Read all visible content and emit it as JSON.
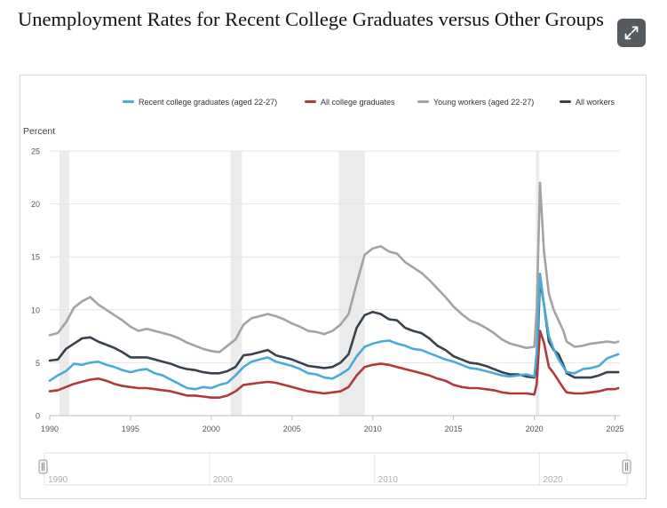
{
  "page": {
    "title": "Unemployment Rates for Recent College Graduates versus Other Groups"
  },
  "chart_data": {
    "type": "line",
    "title": "",
    "xlabel": "",
    "ylabel": "Percent",
    "xlim": [
      1990,
      2025.3
    ],
    "ylim": [
      0,
      25
    ],
    "y_ticks": [
      0,
      5,
      10,
      15,
      20,
      25
    ],
    "x_ticks": [
      1990,
      1995,
      2000,
      2005,
      2010,
      2015,
      2020,
      2025
    ],
    "legend_position": "top",
    "grid": "horizontal",
    "recessions": [
      [
        1990.6,
        1991.2
      ],
      [
        2001.2,
        2001.9
      ],
      [
        2007.9,
        2009.5
      ],
      [
        2020.1,
        2020.3
      ]
    ],
    "series": [
      {
        "name": "Recent college graduates (aged 22-27)",
        "color": "#4aaad8",
        "points": [
          [
            1990.0,
            3.3
          ],
          [
            1990.5,
            3.8
          ],
          [
            1991.0,
            4.2
          ],
          [
            1991.5,
            4.9
          ],
          [
            1992.0,
            4.8
          ],
          [
            1992.5,
            5.0
          ],
          [
            1993.0,
            5.1
          ],
          [
            1993.5,
            4.8
          ],
          [
            1994.0,
            4.6
          ],
          [
            1994.5,
            4.3
          ],
          [
            1995.0,
            4.1
          ],
          [
            1995.5,
            4.3
          ],
          [
            1996.0,
            4.4
          ],
          [
            1996.5,
            4.0
          ],
          [
            1997.0,
            3.8
          ],
          [
            1997.5,
            3.4
          ],
          [
            1998.0,
            3.0
          ],
          [
            1998.5,
            2.6
          ],
          [
            1999.0,
            2.5
          ],
          [
            1999.5,
            2.7
          ],
          [
            2000.0,
            2.6
          ],
          [
            2000.5,
            2.9
          ],
          [
            2001.0,
            3.1
          ],
          [
            2001.5,
            3.8
          ],
          [
            2002.0,
            4.6
          ],
          [
            2002.5,
            5.1
          ],
          [
            2003.0,
            5.3
          ],
          [
            2003.5,
            5.5
          ],
          [
            2004.0,
            5.1
          ],
          [
            2004.5,
            4.9
          ],
          [
            2005.0,
            4.7
          ],
          [
            2005.5,
            4.4
          ],
          [
            2006.0,
            4.0
          ],
          [
            2006.5,
            3.9
          ],
          [
            2007.0,
            3.6
          ],
          [
            2007.5,
            3.5
          ],
          [
            2008.0,
            3.9
          ],
          [
            2008.5,
            4.4
          ],
          [
            2009.0,
            5.6
          ],
          [
            2009.5,
            6.5
          ],
          [
            2010.0,
            6.8
          ],
          [
            2010.5,
            7.0
          ],
          [
            2011.0,
            7.1
          ],
          [
            2011.5,
            6.8
          ],
          [
            2012.0,
            6.6
          ],
          [
            2012.5,
            6.3
          ],
          [
            2013.0,
            6.2
          ],
          [
            2013.5,
            5.9
          ],
          [
            2014.0,
            5.6
          ],
          [
            2014.5,
            5.3
          ],
          [
            2015.0,
            5.1
          ],
          [
            2015.5,
            4.8
          ],
          [
            2016.0,
            4.5
          ],
          [
            2016.5,
            4.4
          ],
          [
            2017.0,
            4.2
          ],
          [
            2017.5,
            4.0
          ],
          [
            2018.0,
            3.8
          ],
          [
            2018.5,
            3.7
          ],
          [
            2019.0,
            3.8
          ],
          [
            2019.5,
            3.9
          ],
          [
            2020.0,
            3.7
          ],
          [
            2020.15,
            6.0
          ],
          [
            2020.35,
            13.4
          ],
          [
            2020.6,
            10.5
          ],
          [
            2020.9,
            7.5
          ],
          [
            2021.2,
            6.3
          ],
          [
            2021.5,
            5.3
          ],
          [
            2021.8,
            4.6
          ],
          [
            2022.0,
            4.1
          ],
          [
            2022.5,
            4.0
          ],
          [
            2023.0,
            4.4
          ],
          [
            2023.5,
            4.5
          ],
          [
            2024.0,
            4.7
          ],
          [
            2024.5,
            5.4
          ],
          [
            2025.0,
            5.7
          ],
          [
            2025.2,
            5.8
          ]
        ]
      },
      {
        "name": "All college graduates",
        "color": "#b03a3a",
        "points": [
          [
            1990.0,
            2.3
          ],
          [
            1990.5,
            2.4
          ],
          [
            1991.0,
            2.7
          ],
          [
            1991.5,
            3.0
          ],
          [
            1992.0,
            3.2
          ],
          [
            1992.5,
            3.4
          ],
          [
            1993.0,
            3.5
          ],
          [
            1993.5,
            3.3
          ],
          [
            1994.0,
            3.0
          ],
          [
            1994.5,
            2.8
          ],
          [
            1995.0,
            2.7
          ],
          [
            1995.5,
            2.6
          ],
          [
            1996.0,
            2.6
          ],
          [
            1996.5,
            2.5
          ],
          [
            1997.0,
            2.4
          ],
          [
            1997.5,
            2.3
          ],
          [
            1998.0,
            2.1
          ],
          [
            1998.5,
            1.9
          ],
          [
            1999.0,
            1.9
          ],
          [
            1999.5,
            1.8
          ],
          [
            2000.0,
            1.7
          ],
          [
            2000.5,
            1.7
          ],
          [
            2001.0,
            1.9
          ],
          [
            2001.5,
            2.3
          ],
          [
            2002.0,
            2.9
          ],
          [
            2002.5,
            3.0
          ],
          [
            2003.0,
            3.1
          ],
          [
            2003.5,
            3.2
          ],
          [
            2004.0,
            3.1
          ],
          [
            2004.5,
            2.9
          ],
          [
            2005.0,
            2.7
          ],
          [
            2005.5,
            2.5
          ],
          [
            2006.0,
            2.3
          ],
          [
            2006.5,
            2.2
          ],
          [
            2007.0,
            2.1
          ],
          [
            2007.5,
            2.2
          ],
          [
            2008.0,
            2.3
          ],
          [
            2008.5,
            2.7
          ],
          [
            2009.0,
            3.8
          ],
          [
            2009.5,
            4.6
          ],
          [
            2010.0,
            4.8
          ],
          [
            2010.5,
            4.9
          ],
          [
            2011.0,
            4.8
          ],
          [
            2011.5,
            4.6
          ],
          [
            2012.0,
            4.4
          ],
          [
            2012.5,
            4.2
          ],
          [
            2013.0,
            4.0
          ],
          [
            2013.5,
            3.8
          ],
          [
            2014.0,
            3.5
          ],
          [
            2014.5,
            3.3
          ],
          [
            2015.0,
            2.9
          ],
          [
            2015.5,
            2.7
          ],
          [
            2016.0,
            2.6
          ],
          [
            2016.5,
            2.6
          ],
          [
            2017.0,
            2.5
          ],
          [
            2017.5,
            2.4
          ],
          [
            2018.0,
            2.2
          ],
          [
            2018.5,
            2.1
          ],
          [
            2019.0,
            2.1
          ],
          [
            2019.5,
            2.1
          ],
          [
            2020.0,
            2.0
          ],
          [
            2020.15,
            3.0
          ],
          [
            2020.35,
            8.0
          ],
          [
            2020.6,
            6.9
          ],
          [
            2020.9,
            4.6
          ],
          [
            2021.2,
            4.0
          ],
          [
            2021.5,
            3.3
          ],
          [
            2021.8,
            2.6
          ],
          [
            2022.0,
            2.2
          ],
          [
            2022.5,
            2.1
          ],
          [
            2023.0,
            2.1
          ],
          [
            2023.5,
            2.2
          ],
          [
            2024.0,
            2.3
          ],
          [
            2024.5,
            2.5
          ],
          [
            2025.0,
            2.5
          ],
          [
            2025.2,
            2.6
          ]
        ]
      },
      {
        "name": "Young workers (aged 22-27)",
        "color": "#a3a3a3",
        "points": [
          [
            1990.0,
            7.6
          ],
          [
            1990.5,
            7.8
          ],
          [
            1991.0,
            8.8
          ],
          [
            1991.5,
            10.2
          ],
          [
            1992.0,
            10.8
          ],
          [
            1992.5,
            11.2
          ],
          [
            1993.0,
            10.5
          ],
          [
            1993.5,
            10.0
          ],
          [
            1994.0,
            9.5
          ],
          [
            1994.5,
            9.0
          ],
          [
            1995.0,
            8.4
          ],
          [
            1995.5,
            8.0
          ],
          [
            1996.0,
            8.2
          ],
          [
            1996.5,
            8.0
          ],
          [
            1997.0,
            7.8
          ],
          [
            1997.5,
            7.6
          ],
          [
            1998.0,
            7.3
          ],
          [
            1998.5,
            6.9
          ],
          [
            1999.0,
            6.6
          ],
          [
            1999.5,
            6.3
          ],
          [
            2000.0,
            6.1
          ],
          [
            2000.5,
            6.0
          ],
          [
            2001.0,
            6.6
          ],
          [
            2001.5,
            7.2
          ],
          [
            2002.0,
            8.6
          ],
          [
            2002.5,
            9.2
          ],
          [
            2003.0,
            9.4
          ],
          [
            2003.5,
            9.6
          ],
          [
            2004.0,
            9.4
          ],
          [
            2004.5,
            9.1
          ],
          [
            2005.0,
            8.7
          ],
          [
            2005.5,
            8.4
          ],
          [
            2006.0,
            8.0
          ],
          [
            2006.5,
            7.9
          ],
          [
            2007.0,
            7.7
          ],
          [
            2007.5,
            8.0
          ],
          [
            2008.0,
            8.6
          ],
          [
            2008.5,
            9.6
          ],
          [
            2009.0,
            12.5
          ],
          [
            2009.5,
            15.2
          ],
          [
            2010.0,
            15.8
          ],
          [
            2010.5,
            16.0
          ],
          [
            2011.0,
            15.5
          ],
          [
            2011.5,
            15.3
          ],
          [
            2012.0,
            14.5
          ],
          [
            2012.5,
            14.0
          ],
          [
            2013.0,
            13.5
          ],
          [
            2013.5,
            12.8
          ],
          [
            2014.0,
            12.0
          ],
          [
            2014.5,
            11.2
          ],
          [
            2015.0,
            10.3
          ],
          [
            2015.5,
            9.6
          ],
          [
            2016.0,
            9.0
          ],
          [
            2016.5,
            8.7
          ],
          [
            2017.0,
            8.3
          ],
          [
            2017.5,
            7.8
          ],
          [
            2018.0,
            7.2
          ],
          [
            2018.5,
            6.8
          ],
          [
            2019.0,
            6.6
          ],
          [
            2019.5,
            6.4
          ],
          [
            2020.0,
            6.5
          ],
          [
            2020.15,
            10.0
          ],
          [
            2020.35,
            22.0
          ],
          [
            2020.6,
            15.5
          ],
          [
            2020.9,
            11.5
          ],
          [
            2021.2,
            10.0
          ],
          [
            2021.5,
            9.0
          ],
          [
            2021.8,
            8.0
          ],
          [
            2022.0,
            7.0
          ],
          [
            2022.5,
            6.5
          ],
          [
            2023.0,
            6.6
          ],
          [
            2023.5,
            6.8
          ],
          [
            2024.0,
            6.9
          ],
          [
            2024.5,
            7.0
          ],
          [
            2025.0,
            6.9
          ],
          [
            2025.2,
            7.0
          ]
        ]
      },
      {
        "name": "All workers",
        "color": "#37424d",
        "points": [
          [
            1990.0,
            5.2
          ],
          [
            1990.5,
            5.3
          ],
          [
            1991.0,
            6.3
          ],
          [
            1991.5,
            6.8
          ],
          [
            1992.0,
            7.3
          ],
          [
            1992.5,
            7.4
          ],
          [
            1993.0,
            7.0
          ],
          [
            1993.5,
            6.7
          ],
          [
            1994.0,
            6.4
          ],
          [
            1994.5,
            6.0
          ],
          [
            1995.0,
            5.5
          ],
          [
            1995.5,
            5.5
          ],
          [
            1996.0,
            5.5
          ],
          [
            1996.5,
            5.3
          ],
          [
            1997.0,
            5.1
          ],
          [
            1997.5,
            4.9
          ],
          [
            1998.0,
            4.6
          ],
          [
            1998.5,
            4.4
          ],
          [
            1999.0,
            4.3
          ],
          [
            1999.5,
            4.1
          ],
          [
            2000.0,
            4.0
          ],
          [
            2000.5,
            4.0
          ],
          [
            2001.0,
            4.2
          ],
          [
            2001.5,
            4.6
          ],
          [
            2002.0,
            5.7
          ],
          [
            2002.5,
            5.8
          ],
          [
            2003.0,
            6.0
          ],
          [
            2003.5,
            6.2
          ],
          [
            2004.0,
            5.7
          ],
          [
            2004.5,
            5.5
          ],
          [
            2005.0,
            5.3
          ],
          [
            2005.5,
            5.0
          ],
          [
            2006.0,
            4.7
          ],
          [
            2006.5,
            4.6
          ],
          [
            2007.0,
            4.5
          ],
          [
            2007.5,
            4.6
          ],
          [
            2008.0,
            5.0
          ],
          [
            2008.5,
            5.8
          ],
          [
            2009.0,
            8.3
          ],
          [
            2009.5,
            9.5
          ],
          [
            2010.0,
            9.8
          ],
          [
            2010.5,
            9.6
          ],
          [
            2011.0,
            9.1
          ],
          [
            2011.5,
            9.0
          ],
          [
            2012.0,
            8.3
          ],
          [
            2012.5,
            8.0
          ],
          [
            2013.0,
            7.8
          ],
          [
            2013.5,
            7.3
          ],
          [
            2014.0,
            6.6
          ],
          [
            2014.5,
            6.2
          ],
          [
            2015.0,
            5.6
          ],
          [
            2015.5,
            5.3
          ],
          [
            2016.0,
            5.0
          ],
          [
            2016.5,
            4.9
          ],
          [
            2017.0,
            4.7
          ],
          [
            2017.5,
            4.4
          ],
          [
            2018.0,
            4.1
          ],
          [
            2018.5,
            3.9
          ],
          [
            2019.0,
            3.9
          ],
          [
            2019.5,
            3.7
          ],
          [
            2020.0,
            3.6
          ],
          [
            2020.15,
            4.4
          ],
          [
            2020.35,
            12.8
          ],
          [
            2020.6,
            10.5
          ],
          [
            2020.9,
            7.0
          ],
          [
            2021.2,
            6.2
          ],
          [
            2021.5,
            5.8
          ],
          [
            2021.8,
            4.8
          ],
          [
            2022.0,
            4.0
          ],
          [
            2022.5,
            3.6
          ],
          [
            2023.0,
            3.6
          ],
          [
            2023.5,
            3.6
          ],
          [
            2024.0,
            3.8
          ],
          [
            2024.5,
            4.1
          ],
          [
            2025.0,
            4.1
          ],
          [
            2025.2,
            4.1
          ]
        ]
      }
    ],
    "navigator": {
      "tick_labels": [
        "1990",
        "2000",
        "2010",
        "2020"
      ]
    }
  }
}
